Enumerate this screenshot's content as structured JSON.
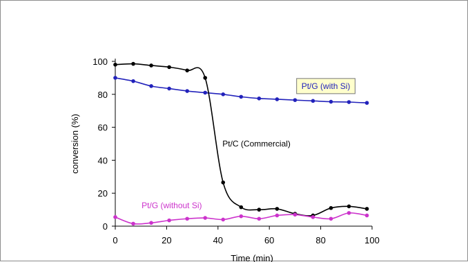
{
  "chart_data": {
    "type": "line",
    "title": "",
    "xlabel": "Time (min)",
    "ylabel": "conversion (%)",
    "xlim": [
      0,
      100
    ],
    "ylim": [
      0,
      100
    ],
    "xticks": [
      0,
      20,
      40,
      60,
      80,
      100
    ],
    "yticks": [
      0,
      20,
      40,
      60,
      80,
      100
    ],
    "grid": false,
    "legend": "none",
    "series": [
      {
        "name": "Pt/G (with Si)",
        "color": "#2222bb",
        "label_box": true,
        "label_box_color": "#ffffcc",
        "label_anchor": [
          82,
          85
        ],
        "x": [
          0,
          7,
          14,
          21,
          28,
          35,
          42,
          49,
          56,
          63,
          70,
          77,
          84,
          91,
          98
        ],
        "y": [
          90,
          88,
          85,
          83.5,
          82,
          81,
          80,
          78.5,
          77.5,
          77,
          76.5,
          76,
          75.5,
          75.3,
          74.8
        ]
      },
      {
        "name": "Pt/C (Commercial)",
        "color": "#000000",
        "label_box": false,
        "label_anchor": [
          55,
          50
        ],
        "x": [
          0,
          7,
          14,
          21,
          28,
          35,
          42,
          49,
          56,
          63,
          70,
          77,
          84,
          91,
          98
        ],
        "y": [
          98,
          98.5,
          97.5,
          96.5,
          94.5,
          90,
          26.5,
          11.5,
          10,
          10.5,
          7.5,
          6.5,
          11,
          12,
          10.5
        ]
      },
      {
        "name": "Pt/G (without Si)",
        "color": "#cc33cc",
        "label_box": false,
        "label_anchor": [
          22,
          12.5
        ],
        "x": [
          0,
          7,
          14,
          21,
          28,
          35,
          42,
          49,
          56,
          63,
          70,
          77,
          84,
          91,
          98
        ],
        "y": [
          5.5,
          1.5,
          2,
          3.5,
          4.5,
          5,
          4,
          6,
          4.5,
          6.5,
          7,
          5.5,
          4.5,
          8,
          6.5
        ]
      }
    ]
  }
}
